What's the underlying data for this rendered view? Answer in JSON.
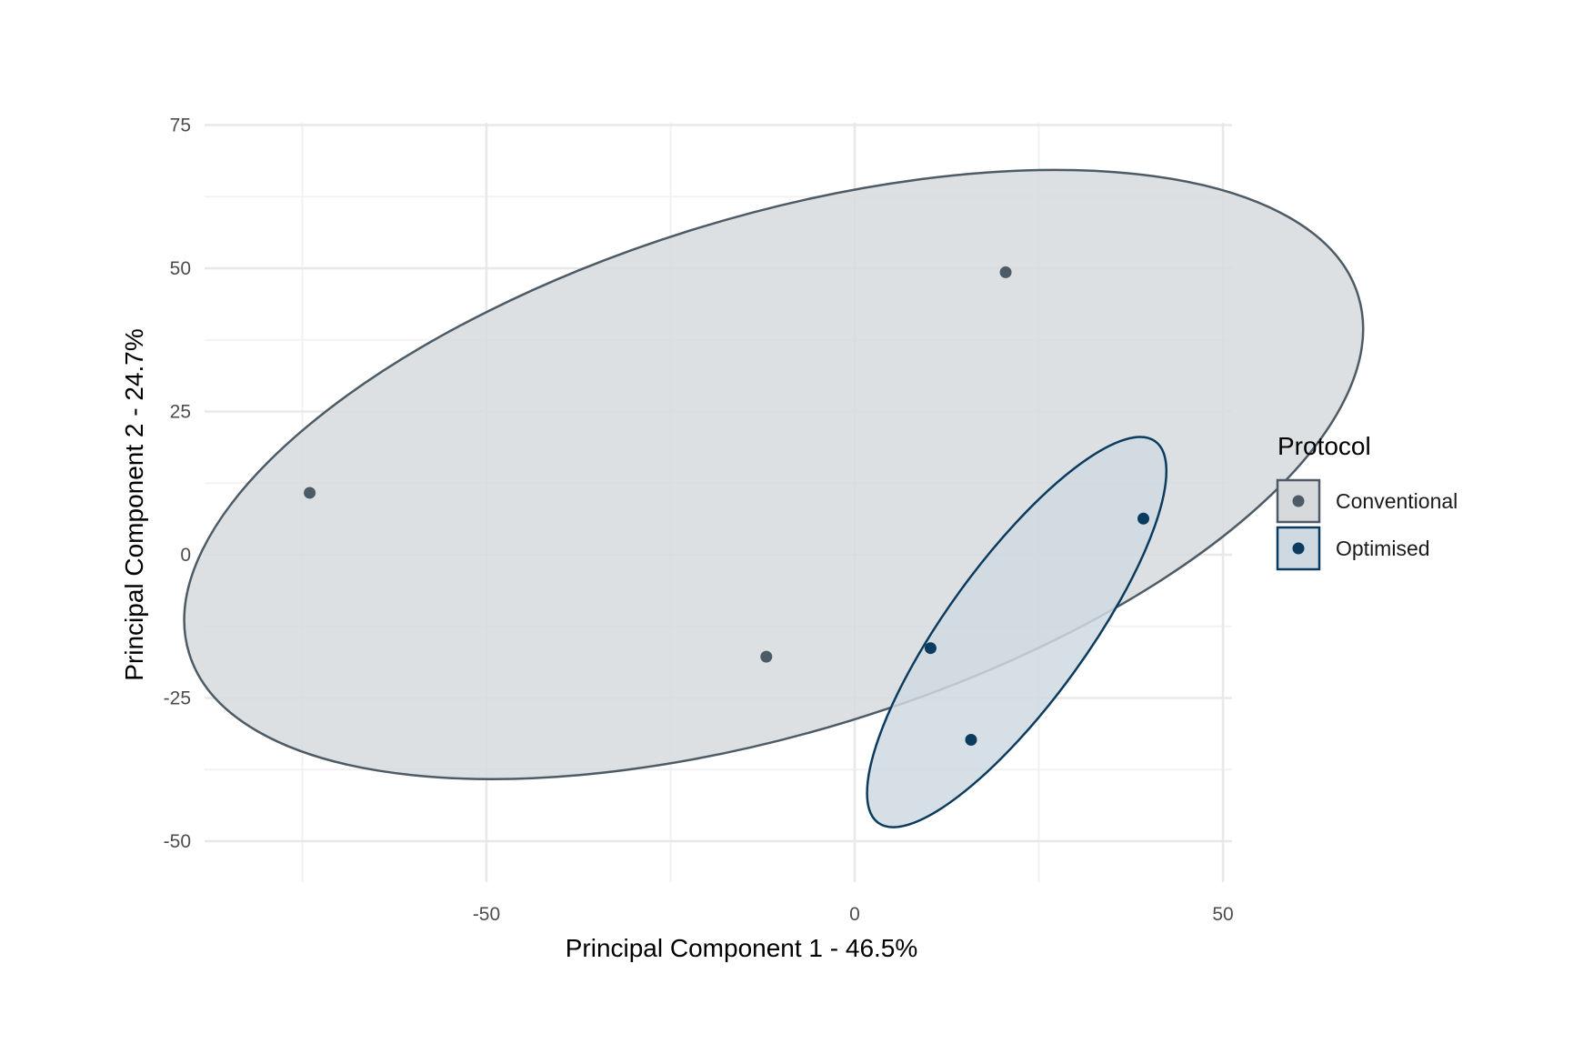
{
  "chart_data": {
    "type": "scatter",
    "title": "",
    "xlabel": "Principal Component 1 - 46.5%",
    "ylabel": "Principal Component 2 - 24.7%",
    "xlim": [
      -75,
      50
    ],
    "ylim": [
      -58,
      75
    ],
    "x_ticks": [
      -50,
      0,
      50
    ],
    "x_minor_ticks": [
      -75,
      -25,
      25
    ],
    "y_ticks": [
      -50,
      -25,
      0,
      25,
      50,
      75
    ],
    "y_minor_ticks": [
      -37.5,
      -12.5,
      12.5,
      37.5,
      62.5
    ],
    "grid": true,
    "legend": {
      "title": "Protocol",
      "position": "right"
    },
    "series": [
      {
        "name": "Conventional",
        "color": "#4d5b66",
        "fill": "#d6dadd",
        "points": [
          {
            "x": -74,
            "y": 10.8
          },
          {
            "x": -12,
            "y": -17.8
          },
          {
            "x": 20.5,
            "y": 49.3
          }
        ],
        "ellipse": {
          "cx": -11,
          "cy": 14,
          "rx": 83,
          "ry": 35,
          "angle_deg": 17
        }
      },
      {
        "name": "Optimised",
        "color": "#0b3b5e",
        "fill": "#cfd9e1",
        "points": [
          {
            "x": 10.3,
            "y": -16.3
          },
          {
            "x": 15.8,
            "y": -32.3
          },
          {
            "x": 39.2,
            "y": 6.3
          }
        ],
        "ellipse": {
          "cx": 22,
          "cy": -13.5,
          "rx": 32,
          "ry": 9.5,
          "angle_deg": 54
        }
      }
    ]
  }
}
